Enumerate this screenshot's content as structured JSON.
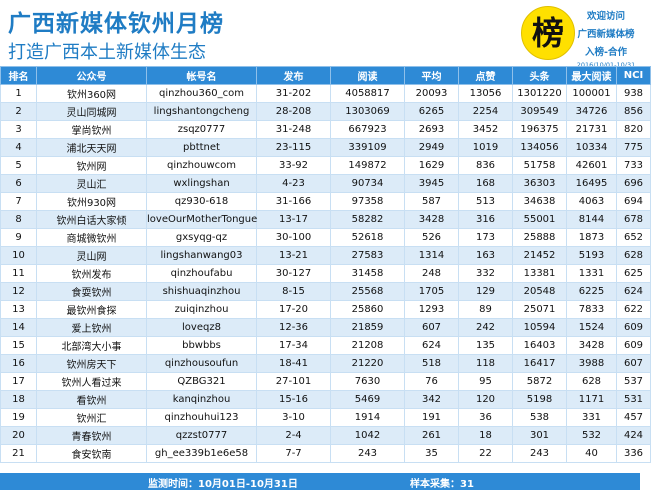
{
  "header": {
    "title": "广西新媒体钦州月榜",
    "subtitle": "打造广西本土新媒体生态",
    "badge_char": "榜",
    "side_line1": "欢迎访问",
    "side_line2": "广西新媒体榜",
    "side_line3": "入榜-合作",
    "side_date": "2016/10/01-10/31"
  },
  "table": {
    "columns": [
      "排名",
      "公众号",
      "帐号名",
      "发布",
      "阅读",
      "平均",
      "点赞",
      "头条",
      "最大阅读",
      "NCI"
    ],
    "rows": [
      [
        "1",
        "钦州360网",
        "qinzhou360_com",
        "31-202",
        "4058817",
        "20093",
        "13056",
        "1301220",
        "100001",
        "938"
      ],
      [
        "2",
        "灵山同城网",
        "lingshantongcheng",
        "28-208",
        "1303069",
        "6265",
        "2254",
        "309549",
        "34726",
        "856"
      ],
      [
        "3",
        "掌尚钦州",
        "zsqz0777",
        "31-248",
        "667923",
        "2693",
        "3452",
        "196375",
        "21731",
        "820"
      ],
      [
        "4",
        "浦北天天网",
        "pbttnet",
        "23-115",
        "339109",
        "2949",
        "1019",
        "134056",
        "10334",
        "775"
      ],
      [
        "5",
        "钦州网",
        "qinzhouwcom",
        "33-92",
        "149872",
        "1629",
        "836",
        "51758",
        "42601",
        "733"
      ],
      [
        "6",
        "灵山汇",
        "wxlingshan",
        "4-23",
        "90734",
        "3945",
        "168",
        "36303",
        "16495",
        "696"
      ],
      [
        "7",
        "钦州930网",
        "qz930-618",
        "31-166",
        "97358",
        "587",
        "513",
        "34638",
        "4063",
        "694"
      ],
      [
        "8",
        "钦州白话大家倾",
        "loveOurMotherTongue",
        "13-17",
        "58282",
        "3428",
        "316",
        "55001",
        "8144",
        "678"
      ],
      [
        "9",
        "商城微钦州",
        "gxsyqg-qz",
        "30-100",
        "52618",
        "526",
        "173",
        "25888",
        "1873",
        "652"
      ],
      [
        "10",
        "灵山网",
        "lingshanwang03",
        "13-21",
        "27583",
        "1314",
        "163",
        "21452",
        "5193",
        "628"
      ],
      [
        "11",
        "钦州发布",
        "qinzhoufabu",
        "30-127",
        "31458",
        "248",
        "332",
        "13381",
        "1331",
        "625"
      ],
      [
        "12",
        "食耍钦州",
        "shishuaqinzhou",
        "8-15",
        "25568",
        "1705",
        "129",
        "20548",
        "6225",
        "624"
      ],
      [
        "13",
        "最钦州食探",
        "zuiqinzhou",
        "17-20",
        "25860",
        "1293",
        "89",
        "25071",
        "7833",
        "622"
      ],
      [
        "14",
        "爱上钦州",
        "loveqz8",
        "12-36",
        "21859",
        "607",
        "242",
        "10594",
        "1524",
        "609"
      ],
      [
        "15",
        "北部湾大小事",
        "bbwbbs",
        "17-34",
        "21208",
        "624",
        "135",
        "16403",
        "3428",
        "609"
      ],
      [
        "16",
        "钦州房天下",
        "qinzhousoufun",
        "18-41",
        "21220",
        "518",
        "118",
        "16417",
        "3988",
        "607"
      ],
      [
        "17",
        "钦州人看过来",
        "QZBG321",
        "27-101",
        "7630",
        "76",
        "95",
        "5872",
        "628",
        "537"
      ],
      [
        "18",
        "看钦州",
        "kanqinzhou",
        "15-16",
        "5469",
        "342",
        "120",
        "5198",
        "1171",
        "531"
      ],
      [
        "19",
        "钦州汇",
        "qinzhouhui123",
        "3-10",
        "1914",
        "191",
        "36",
        "538",
        "331",
        "457"
      ],
      [
        "20",
        "青春钦州",
        "qzzst0777",
        "2-4",
        "1042",
        "261",
        "18",
        "301",
        "532",
        "424"
      ],
      [
        "21",
        "食安钦南",
        "gh_ee339b1e6e58",
        "7-7",
        "243",
        "35",
        "22",
        "243",
        "40",
        "336"
      ]
    ]
  },
  "footer": {
    "period": "监测时间：10月01日-10月31日",
    "sample": "样本采集：31"
  },
  "colors": {
    "accent": "#2e8ad6",
    "title": "#1f7cc4",
    "badge": "#ffe000",
    "row_alt": "#dcebf8"
  }
}
